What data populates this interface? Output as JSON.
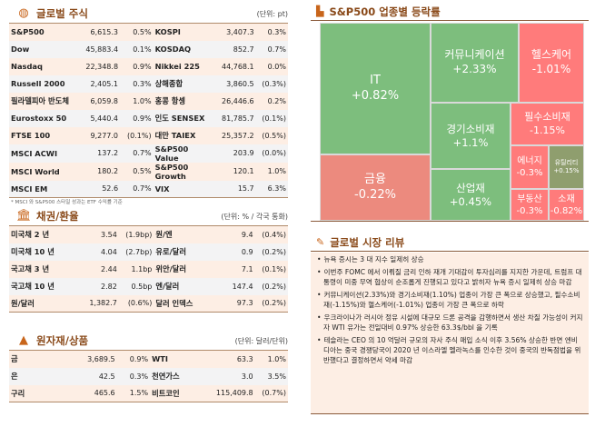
{
  "stocks": {
    "title": "글로벌 주식",
    "unit": "(단위: pt)",
    "icon": "globe-icon",
    "rows": [
      [
        "S&P500",
        "6,615.3",
        "0.5%",
        "KOSPI",
        "3,407.3",
        "0.3%"
      ],
      [
        "Dow",
        "45,883.4",
        "0.1%",
        "KOSDAQ",
        "852.7",
        "0.7%"
      ],
      [
        "Nasdaq",
        "22,348.8",
        "0.9%",
        "Nikkei 225",
        "44,768.1",
        "0.0%"
      ],
      [
        "Russell 2000",
        "2,405.1",
        "0.3%",
        "상해종합",
        "3,860.5",
        "(0.3%)"
      ],
      [
        "필라델피아 반도체",
        "6,059.8",
        "1.0%",
        "홍콩 항셍",
        "26,446.6",
        "0.2%"
      ],
      [
        "Eurostoxx 50",
        "5,440.4",
        "0.9%",
        "인도 SENSEX",
        "81,785.7",
        "(0.1%)"
      ],
      [
        "FTSE 100",
        "9,277.0",
        "(0.1%)",
        "대만 TAIEX",
        "25,357.2",
        "(0.5%)"
      ],
      [
        "MSCI ACWI",
        "137.2",
        "0.7%",
        "S&P500 Value",
        "203.9",
        "(0.0%)"
      ],
      [
        "MSCI World",
        "180.2",
        "0.5%",
        "S&P500 Growth",
        "120.1",
        "1.0%"
      ],
      [
        "MSCI EM",
        "52.6",
        "0.7%",
        "VIX",
        "15.7",
        "6.3%"
      ]
    ],
    "note": "* MSCI 와 S&P500 스타일 성과는 ETF 수익률 기준"
  },
  "bonds": {
    "title": "채권/환율",
    "unit": "(단위: % / 각국 통화)",
    "icon": "bank-icon",
    "rows": [
      [
        "미국채 2 년",
        "3.54",
        "(1.9bp)",
        "원/엔",
        "9.4",
        "(0.4%)"
      ],
      [
        "미국채 10 년",
        "4.04",
        "(2.7bp)",
        "유로/달러",
        "0.9",
        "(0.2%)"
      ],
      [
        "국고채 3 년",
        "2.44",
        "1.1bp",
        "위안/달러",
        "7.1",
        "(0.1%)"
      ],
      [
        "국고채 10 년",
        "2.82",
        "0.5bp",
        "엔/달러",
        "147.4",
        "(0.2%)"
      ],
      [
        "원/달러",
        "1,382.7",
        "(0.6%)",
        "달러 인덱스",
        "97.3",
        "(0.2%)"
      ]
    ]
  },
  "commodities": {
    "title": "원자재/상품",
    "unit": "(단위: 달러/단위)",
    "icon": "gold-bars-icon",
    "rows": [
      [
        "금",
        "3,689.5",
        "0.9%",
        "WTI",
        "63.3",
        "1.0%"
      ],
      [
        "은",
        "42.5",
        "0.3%",
        "천연가스",
        "3.0",
        "3.5%"
      ],
      [
        "구리",
        "465.6",
        "1.5%",
        "비트코인",
        "115,409.8",
        "(0.7%)"
      ]
    ]
  },
  "sectors": {
    "title": "S&P500 업종별 등락률",
    "icon": "bar-chart-icon",
    "colors": {
      "up": "#7dbe7d",
      "down": "#ff7b7b",
      "finance": "#ec8a7e",
      "flat": "#8f9e6e"
    },
    "tiles": [
      {
        "name": "IT",
        "change": "+0.82%"
      },
      {
        "name": "금융",
        "change": "-0.22%"
      },
      {
        "name": "커뮤니케이션",
        "change": "+2.33%"
      },
      {
        "name": "헬스케어",
        "change": "-1.01%"
      },
      {
        "name": "경기소비재",
        "change": "+1.1%"
      },
      {
        "name": "산업재",
        "change": "+0.45%"
      },
      {
        "name": "필수소비재",
        "change": "-1.15%"
      },
      {
        "name": "에너지",
        "change": "-0.3%"
      },
      {
        "name": "유틸리티",
        "change": "+0.15%"
      },
      {
        "name": "부동산",
        "change": "-0.3%"
      },
      {
        "name": "소재",
        "change": "-0.82%"
      }
    ]
  },
  "review": {
    "title": "글로벌 시장 리뷰",
    "icon": "pencil-icon",
    "items": [
      "뉴욕 증시는 3 대 지수 일제히 상승",
      "이번주 FOMC 에서 이뤄질 금리 인하 재개 기대감이 투자심리를 지지한 가운데, 트럼프 대통령이 미중 무역 협상이 순조롭게 진행되고 있다고 밝히자 뉴욕 증시 일제히 상승 마감",
      "커뮤니케이션(2.33%)와 경기소비재(1.10%) 업종이 가장 큰 폭으로 상승했고, 필수소비재(-1.15%)와 헬스케어(-1.01%) 업종이 가장 큰 폭으로 하락",
      "우크라이나가 러시아 정유 시설에 대규모 드론 공격을 감행하면서 생산 차질 가능성이 커지자 WTI 유가는 전일대비 0.97% 상승한 63.3$/bbl 을 기록",
      "테슬라는 CEO 의 10 억달러 규모의 자사 주식 매입 소식 이후 3.56% 상승한 반면 엔비디아는 중국 경쟁당국이 2020 년 이스라엘 멜라녹스를 인수한 것이 중국의 반독점법을 위반했다고 결정하면서 약세 마감"
    ]
  }
}
